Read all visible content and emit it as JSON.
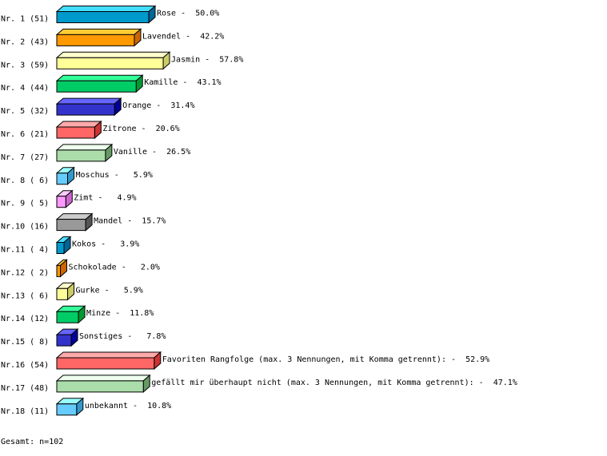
{
  "chart_data": {
    "type": "bar",
    "orientation": "horizontal",
    "style": "3d",
    "grid": false,
    "xlim": [
      0,
      59
    ],
    "row_labels": [
      "Nr. 1 (51)",
      "Nr. 2 (43)",
      "Nr. 3 (59)",
      "Nr. 4 (44)",
      "Nr. 5 (32)",
      "Nr. 6 (21)",
      "Nr. 7 (27)",
      "Nr. 8 ( 6)",
      "Nr. 9 ( 5)",
      "Nr.10 (16)",
      "Nr.11 ( 4)",
      "Nr.12 ( 2)",
      "Nr.13 ( 6)",
      "Nr.14 (12)",
      "Nr.15 ( 8)",
      "Nr.16 (54)",
      "Nr.17 (48)",
      "Nr.18 (11)"
    ],
    "categories": [
      "Rose",
      "Lavendel",
      "Jasmin",
      "Kamille",
      "Orange",
      "Zitrone",
      "Vanille",
      "Moschus",
      "Zimt",
      "Mandel",
      "Kokos",
      "Schokolade",
      "Gurke",
      "Minze",
      "Sonstiges",
      "Favoriten Rangfolge (max. 3 Nennungen, mit Komma getrennt):",
      "gefällt mir überhaupt nicht (max. 3 Nennungen, mit Komma getrennt):",
      "unbekannt"
    ],
    "values": [
      51,
      43,
      59,
      44,
      32,
      21,
      27,
      6,
      5,
      16,
      4,
      2,
      6,
      12,
      8,
      54,
      48,
      11
    ],
    "percent_labels": [
      "50.0%",
      "42.2%",
      "57.8%",
      "43.1%",
      "31.4%",
      "20.6%",
      "26.5%",
      "5.9%",
      "4.9%",
      "15.7%",
      "3.9%",
      "2.0%",
      "5.9%",
      "11.8%",
      "7.8%",
      "52.9%",
      "47.1%",
      "10.8%"
    ],
    "palette": [
      {
        "front": "#0099cc",
        "top": "#44ddff",
        "side": "#006699"
      },
      {
        "front": "#ff9900",
        "top": "#ffcc33",
        "side": "#cc6600"
      },
      {
        "front": "#ffff99",
        "top": "#ffffcc",
        "side": "#cccc66"
      },
      {
        "front": "#00cc66",
        "top": "#33ff99",
        "side": "#009933"
      },
      {
        "front": "#3333cc",
        "top": "#6666ff",
        "side": "#000099"
      },
      {
        "front": "#ff6666",
        "top": "#ffaaaa",
        "side": "#cc3333"
      },
      {
        "front": "#aaddaa",
        "top": "#eeffee",
        "side": "#669966"
      },
      {
        "front": "#66ccff",
        "top": "#99ffff",
        "side": "#3399cc"
      },
      {
        "front": "#ff99ff",
        "top": "#ffccff",
        "side": "#cc66cc"
      },
      {
        "front": "#999999",
        "top": "#cccccc",
        "side": "#555555"
      }
    ],
    "color_cycle": [
      0,
      1,
      2,
      3,
      4,
      5,
      6,
      7,
      8,
      9,
      0,
      1,
      2,
      3,
      4,
      5,
      6,
      7
    ]
  },
  "footer": {
    "total": "Gesamt: n=102"
  }
}
